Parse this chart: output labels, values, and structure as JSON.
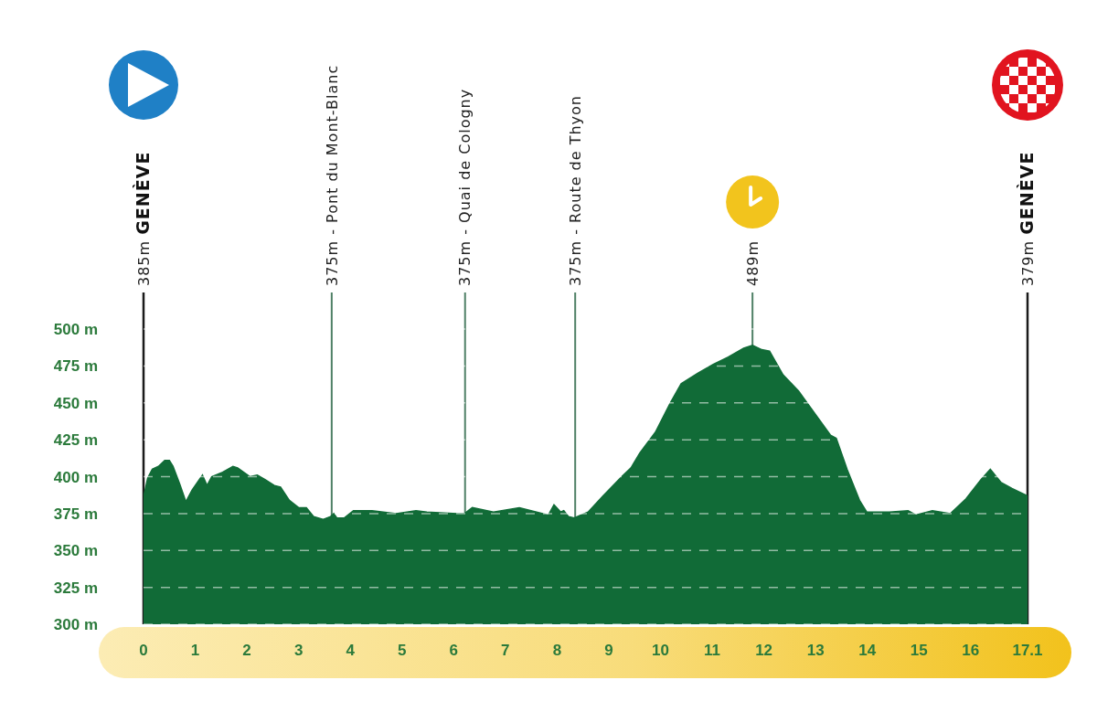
{
  "chart_data": {
    "type": "area",
    "color": "#116b37",
    "x": [
      0,
      0.08,
      0.17,
      0.29,
      0.41,
      0.5,
      0.57,
      0.7,
      0.82,
      0.94,
      1.14,
      1.23,
      1.32,
      1.53,
      1.73,
      1.82,
      2.06,
      2.2,
      2.35,
      2.53,
      2.65,
      2.82,
      3.0,
      3.15,
      3.29,
      3.47,
      3.62,
      3.68,
      3.74,
      3.88,
      4.06,
      4.42,
      4.89,
      5.27,
      5.48,
      6.07,
      6.21,
      6.36,
      6.77,
      7.27,
      7.83,
      7.94,
      8.07,
      8.13,
      8.22,
      8.33,
      8.6,
      8.89,
      9.25,
      9.43,
      9.6,
      9.9,
      10.19,
      10.4,
      10.72,
      11.02,
      11.31,
      11.61,
      11.78,
      11.96,
      12.11,
      12.37,
      12.67,
      12.96,
      13.29,
      13.4,
      13.61,
      13.85,
      13.99,
      14.43,
      14.79,
      14.94,
      15.26,
      15.61,
      15.91,
      16.2,
      16.38,
      16.59,
      16.8,
      17.1
    ],
    "values": [
      386,
      399,
      405,
      407,
      411,
      411,
      407,
      395,
      383,
      391,
      401,
      394,
      400,
      403,
      407,
      406,
      400,
      401,
      398,
      394,
      393,
      384,
      379,
      379,
      373,
      371,
      373,
      375,
      372,
      372,
      377,
      377,
      375,
      377,
      376,
      375,
      375,
      379,
      376,
      379,
      374,
      381,
      376,
      377,
      373,
      372,
      376,
      387,
      400,
      406,
      416,
      430,
      450,
      463,
      470,
      476,
      481,
      487,
      489,
      486,
      485,
      469,
      458,
      444,
      428,
      426,
      405,
      384,
      376,
      376,
      377,
      374,
      377,
      375,
      385,
      398,
      405,
      396,
      392,
      387
    ],
    "xlim": [
      0,
      17.1
    ],
    "xticks": [
      0,
      1,
      2,
      3,
      4,
      5,
      6,
      7,
      8,
      9,
      10,
      11,
      12,
      13,
      14,
      15,
      16,
      17.1
    ],
    "ylim": [
      300,
      500
    ],
    "yticks": [
      {
        "value": 300,
        "label": "300 m"
      },
      {
        "value": 325,
        "label": "325 m"
      },
      {
        "value": 350,
        "label": "350 m"
      },
      {
        "value": 375,
        "label": "375 m"
      },
      {
        "value": 400,
        "label": "400 m"
      },
      {
        "value": 425,
        "label": "425 m"
      },
      {
        "value": 450,
        "label": "450 m"
      },
      {
        "value": 475,
        "label": "475 m"
      },
      {
        "value": 500,
        "label": "500 m"
      }
    ],
    "grid": "y",
    "ref_lines": [
      {
        "axis": "x",
        "value": 0,
        "label": "385m GENÈVE",
        "color": "#1a1a1a"
      },
      {
        "axis": "x",
        "value": 3.64,
        "label": "375m - Pont du Mont-Blanc",
        "color": "#4f8066"
      },
      {
        "axis": "x",
        "value": 6.22,
        "label": "375m - Quai de Cologny",
        "color": "#4f8066"
      },
      {
        "axis": "x",
        "value": 8.35,
        "label": "375m - Route de Thyon",
        "color": "#4f8066"
      },
      {
        "axis": "x",
        "value": 11.78,
        "label": "489m",
        "color": "#4f8066"
      },
      {
        "axis": "x",
        "value": 17.1,
        "label": "379m GENÈVE",
        "color": "#1a1a1a"
      }
    ]
  }
}
